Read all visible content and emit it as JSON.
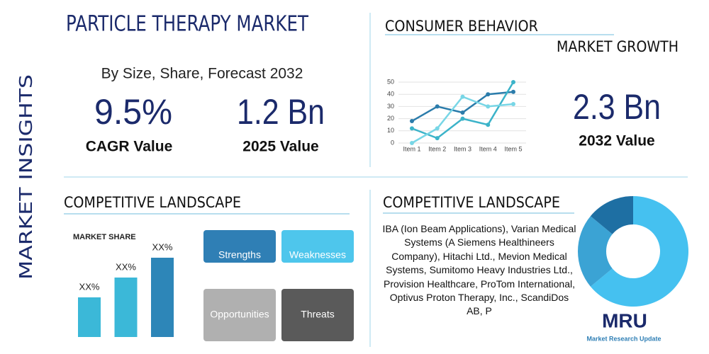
{
  "sidebar": "MARKET INSIGHTS",
  "header": {
    "title": "PARTICLE THERAPY MARKET",
    "subtitle": "By Size, Share, Forecast 2032"
  },
  "stats": [
    {
      "value": "9.5%",
      "label": "CAGR Value"
    },
    {
      "value": "1.2 Bn",
      "label": "2025 Value"
    },
    {
      "value": "2.3 Bn",
      "label": "2032 Value"
    }
  ],
  "consumer": {
    "title": "CONSUMER BEHAVIOR",
    "subtitle": "MARKET GROWTH"
  },
  "competitive_left": {
    "title": "COMPETITIVE LANDSCAPE"
  },
  "swot": [
    "Strengths",
    "Weaknesses",
    "Opportunities",
    "Threats"
  ],
  "competitive_right": {
    "title": "COMPETITIVE LANDSCAPE",
    "text": "IBA (Ion Beam Applications), Varian Medical Systems (A Siemens Healthineers Company), Hitachi Ltd., Mevion Medical Systems, Sumitomo Heavy Industries Ltd., Provision Healthcare, ProTom International, Optivus Proton Therapy, Inc., ScandiDos AB, P"
  },
  "logo": {
    "mark": "MRU",
    "name": "Market Research Update"
  },
  "chart_data": [
    {
      "type": "line",
      "categories": [
        "Item 1",
        "Item 2",
        "Item 3",
        "Item 4",
        "Item 5"
      ],
      "ylim": [
        0,
        50
      ],
      "yticks": [
        0,
        10,
        20,
        30,
        40,
        50
      ],
      "grid": true,
      "series": [
        {
          "color": "#2b7cab",
          "values": [
            18,
            30,
            25,
            40,
            42
          ]
        },
        {
          "color": "#3bb3c9",
          "values": [
            12,
            4,
            20,
            15,
            50
          ]
        },
        {
          "color": "#78d6e6",
          "values": [
            0,
            12,
            38,
            30,
            32
          ]
        }
      ]
    },
    {
      "type": "bar",
      "title": "MARKET SHARE",
      "values": [
        20,
        30,
        40
      ],
      "value_labels": [
        "XX%",
        "XX%",
        "XX%"
      ],
      "colors": [
        "#3bb8d8",
        "#3bb8d8",
        "#2d86b8"
      ]
    },
    {
      "type": "pie",
      "values": [
        64,
        22,
        14
      ],
      "colors": [
        "#45c1f0",
        "#3ba3d4",
        "#1e6fa3"
      ]
    }
  ]
}
